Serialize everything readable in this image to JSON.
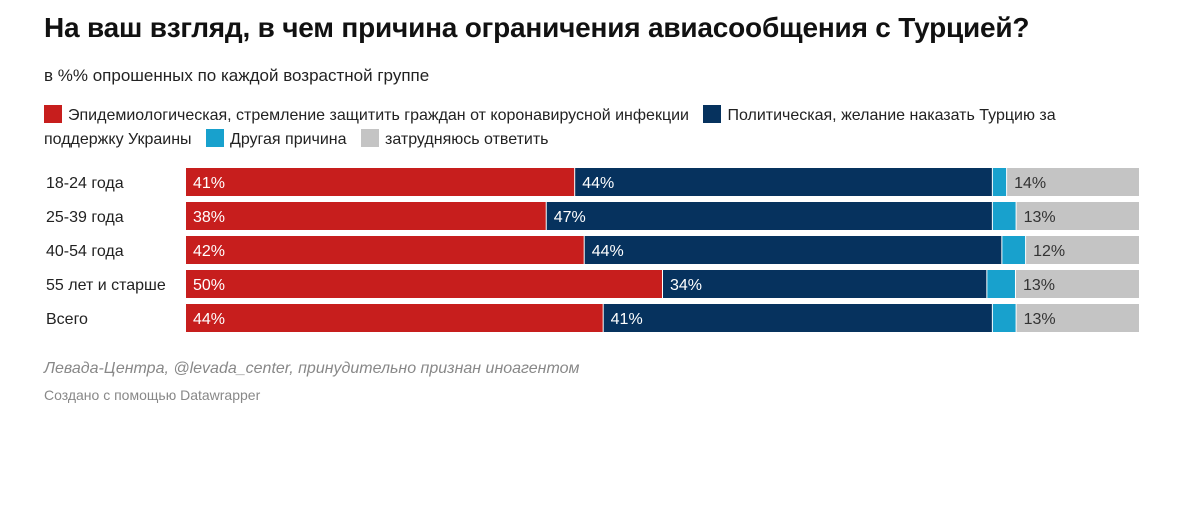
{
  "header": {
    "title": "На ваш взгляд, в чем причина ограничения авиасообщения с Турцией?",
    "subtitle": "в %% опрошенных по каждой возрастной группе"
  },
  "legend": [
    {
      "label": "Эпидемиологическая, стремление защитить граждан от коронавирусной инфекции",
      "color": "#c71e1d"
    },
    {
      "label": "Политическая, желание наказать Турцию за поддержку Украины",
      "color": "#06325e"
    },
    {
      "label": "Другая причина",
      "color": "#18a1cd"
    },
    {
      "label": "затрудняюсь ответить",
      "color": "#c4c4c4"
    }
  ],
  "chart_data": {
    "type": "bar",
    "orientation": "horizontal",
    "stacked": true,
    "categories": [
      "18-24 года",
      "25-39 года",
      "40-54 года",
      "55 лет и старше",
      "Всего"
    ],
    "series": [
      {
        "name": "Эпидемиологическая, стремление защитить граждан от коронавирусной инфекции",
        "color": "#c71e1d",
        "values": [
          41,
          38,
          42,
          50,
          44
        ],
        "labels": [
          "41%",
          "38%",
          "42%",
          "50%",
          "44%"
        ]
      },
      {
        "name": "Политическая, желание наказать Турцию за поддержку Украины",
        "color": "#06325e",
        "values": [
          44,
          47,
          44,
          34,
          41
        ],
        "labels": [
          "44%",
          "47%",
          "44%",
          "34%",
          "41%"
        ]
      },
      {
        "name": "Другая причина",
        "color": "#18a1cd",
        "values": [
          1.5,
          2.5,
          2.5,
          3,
          2.5
        ],
        "labels": [
          "",
          "",
          "",
          "",
          ""
        ]
      },
      {
        "name": "затрудняюсь ответить",
        "color": "#c4c4c4",
        "values": [
          14,
          13,
          12,
          13,
          13
        ],
        "labels": [
          "14%",
          "13%",
          "12%",
          "13%",
          "13%"
        ]
      }
    ],
    "xlim": [
      0,
      100
    ],
    "grid": false,
    "legend_position": "top"
  },
  "footer": {
    "source": "Левада-Центра, @levada_center, принудительно признан иноагентом",
    "credit": "Создано с помощью Datawrapper"
  }
}
